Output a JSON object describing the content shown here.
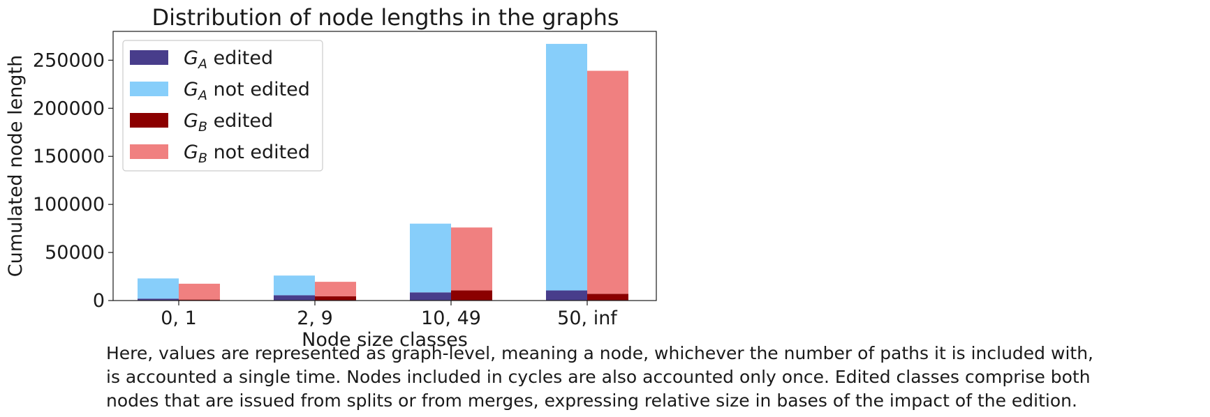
{
  "chart_data": {
    "type": "bar",
    "title": "Distribution of node lengths in the graphs",
    "xlabel": "Node size classes",
    "ylabel": "Cumulated node length",
    "categories": [
      "0, 1",
      "2, 9",
      "10, 49",
      "50, inf"
    ],
    "ylim": [
      0,
      280000
    ],
    "yticks": [
      0,
      50000,
      100000,
      150000,
      200000,
      250000
    ],
    "stacked_groups": true,
    "series": [
      {
        "name": "G_A edited",
        "legend_base": "G",
        "legend_sub": "A",
        "legend_suffix": " edited",
        "group": "A",
        "color": "#483d8b",
        "values": [
          2000,
          5500,
          8500,
          10500
        ]
      },
      {
        "name": "G_A not edited",
        "legend_base": "G",
        "legend_sub": "A",
        "legend_suffix": " not edited",
        "group": "A",
        "color": "#87cefa",
        "values": [
          21000,
          20500,
          71500,
          256500
        ]
      },
      {
        "name": "G_B edited",
        "legend_base": "G",
        "legend_sub": "B",
        "legend_suffix": " edited",
        "group": "B",
        "color": "#8b0000",
        "values": [
          1000,
          4500,
          10500,
          7000
        ]
      },
      {
        "name": "G_B not edited",
        "legend_base": "G",
        "legend_sub": "B",
        "legend_suffix": " not edited",
        "group": "B",
        "color": "#f08080",
        "values": [
          16500,
          15000,
          65500,
          232000
        ]
      }
    ],
    "legend_position": "top-left",
    "grid": false
  },
  "caption": "Here, values are represented as graph-level, meaning a node, whichever the number of paths it is included with,\nis accounted a single time. Nodes included in cycles are also accounted only once. Edited classes comprise both\nnodes that are issued from splits or from merges, expressing relative size in bases of the impact of the edition."
}
